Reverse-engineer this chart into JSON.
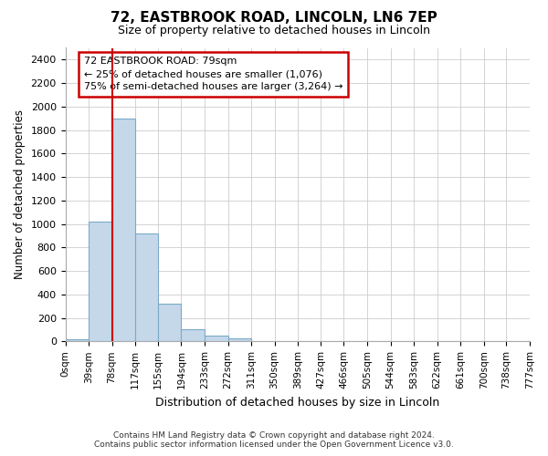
{
  "title": "72, EASTBROOK ROAD, LINCOLN, LN6 7EP",
  "subtitle": "Size of property relative to detached houses in Lincoln",
  "xlabel": "Distribution of detached houses by size in Lincoln",
  "ylabel": "Number of detached properties",
  "bar_heights": [
    20,
    1020,
    1900,
    920,
    320,
    105,
    50,
    25,
    5,
    0,
    0,
    0,
    0,
    0,
    0,
    0,
    0,
    0,
    0,
    0
  ],
  "bin_edges": [
    0,
    39,
    78,
    117,
    155,
    194,
    233,
    272,
    311,
    350,
    389,
    427,
    466,
    505,
    544,
    583,
    622,
    661,
    700,
    738,
    777
  ],
  "tick_labels": [
    "0sqm",
    "39sqm",
    "78sqm",
    "117sqm",
    "155sqm",
    "194sqm",
    "233sqm",
    "272sqm",
    "311sqm",
    "350sqm",
    "389sqm",
    "427sqm",
    "466sqm",
    "505sqm",
    "544sqm",
    "583sqm",
    "622sqm",
    "661sqm",
    "700sqm",
    "738sqm",
    "777sqm"
  ],
  "bar_color": "#c5d8ea",
  "bar_edge_color": "#7baac8",
  "grid_color": "#cccccc",
  "vline_x": 78,
  "vline_color": "#cc0000",
  "ylim": [
    0,
    2500
  ],
  "yticks": [
    0,
    200,
    400,
    600,
    800,
    1000,
    1200,
    1400,
    1600,
    1800,
    2000,
    2200,
    2400
  ],
  "annotation_title": "72 EASTBROOK ROAD: 79sqm",
  "annotation_line1": "← 25% of detached houses are smaller (1,076)",
  "annotation_line2": "75% of semi-detached houses are larger (3,264) →",
  "annotation_box_color": "#cc0000",
  "footer_line1": "Contains HM Land Registry data © Crown copyright and database right 2024.",
  "footer_line2": "Contains public sector information licensed under the Open Government Licence v3.0.",
  "bg_color": "#ffffff",
  "plot_bg_color": "#ffffff"
}
